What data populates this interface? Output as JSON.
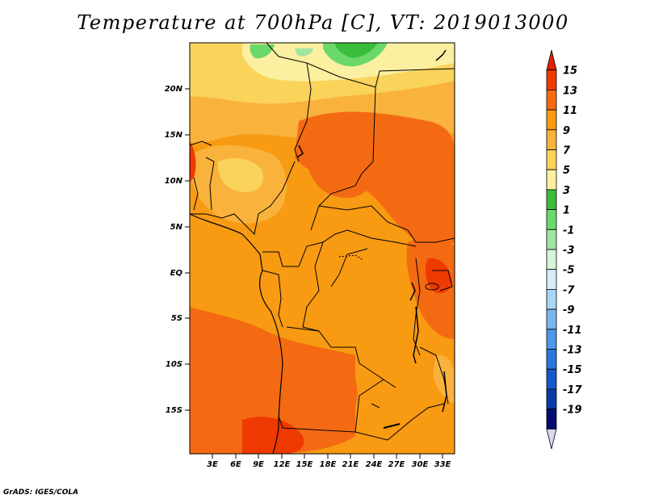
{
  "title": "Temperature at 700hPa [C], VT: 2019013000",
  "credit": "GrADS: IGES/COLA",
  "latitude_labels": [
    "20N",
    "15N",
    "10N",
    "5N",
    "EQ",
    "5S",
    "10S",
    "15S"
  ],
  "longitude_labels": [
    "3E",
    "6E",
    "9E",
    "12E",
    "15E",
    "18E",
    "21E",
    "24E",
    "27E",
    "30E",
    "33E"
  ],
  "colorbar": {
    "labels": [
      "15",
      "13",
      "11",
      "9",
      "7",
      "5",
      "3",
      "1",
      "-1",
      "-3",
      "-5",
      "-7",
      "-9",
      "-11",
      "-13",
      "-15",
      "-17",
      "-19"
    ],
    "colors": [
      "#e02008",
      "#ee3a00",
      "#f46a12",
      "#f89a12",
      "#f9b23c",
      "#fad35a",
      "#fbefa0",
      "#3cbc3c",
      "#6ad86a",
      "#9fe69f",
      "#d7f4d7",
      "#d8ecfa",
      "#a8d6f6",
      "#78b6f0",
      "#4a98e6",
      "#2a78dc",
      "#1658cc",
      "#0a3aa6",
      "#060c6e",
      "#d9d9f2"
    ]
  },
  "map": {
    "region": "Central Africa",
    "lat_range": [
      -20,
      24.5
    ],
    "lon_range": [
      0,
      34.5
    ],
    "field_colors": {
      "t5": "#fbefa0",
      "t7": "#fad35a",
      "t9": "#f9b23c",
      "t11": "#f89a12",
      "t13": "#f46a12",
      "t15": "#ee3a00",
      "green1": "#6ad86a",
      "green2": "#3cbc3c",
      "green3": "#9fe69f"
    }
  }
}
